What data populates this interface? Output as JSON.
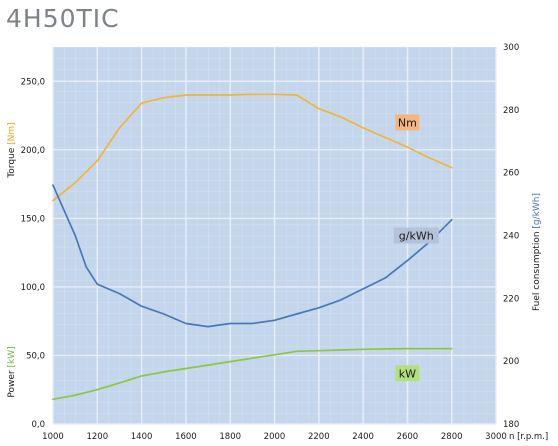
{
  "title": "4H50TIC",
  "chart_data": {
    "type": "line",
    "x_unit": "n [r.p.m.]",
    "xlim": [
      1000,
      3000
    ],
    "x_ticks": [
      1000,
      1200,
      1400,
      1600,
      1800,
      2000,
      2200,
      2400,
      2600,
      2800,
      3000
    ],
    "left_axis": {
      "upper_label": "Torque",
      "upper_unit": "[Nm]",
      "lower_label": "Power",
      "lower_unit": "[kW]",
      "ylim": [
        0,
        275
      ],
      "ticks": [
        "0,0",
        "50,0",
        "100,0",
        "150,0",
        "200,0",
        "250,0"
      ],
      "tick_values": [
        0,
        50,
        100,
        150,
        200,
        250
      ]
    },
    "right_axis": {
      "label": "Fuel consumption",
      "unit": "[g/kWh]",
      "ylim": [
        180,
        300
      ],
      "ticks": [
        "180",
        "200",
        "220",
        "240",
        "260",
        "280",
        "300"
      ],
      "tick_values": [
        180,
        200,
        220,
        240,
        260,
        280,
        300
      ]
    },
    "grid": true,
    "series": [
      {
        "name": "Nm",
        "axis": "left",
        "color": "#f5b431",
        "label_bg": "#f6b57f",
        "label_at": [
          2600,
          220
        ],
        "points": [
          [
            1000,
            163
          ],
          [
            1100,
            176
          ],
          [
            1200,
            192
          ],
          [
            1300,
            216
          ],
          [
            1400,
            234
          ],
          [
            1500,
            238
          ],
          [
            1600,
            240
          ],
          [
            1700,
            240
          ],
          [
            1800,
            240
          ],
          [
            1900,
            240.5
          ],
          [
            2000,
            240.5
          ],
          [
            2100,
            240
          ],
          [
            2200,
            230
          ],
          [
            2300,
            224
          ],
          [
            2400,
            216
          ],
          [
            2500,
            209
          ],
          [
            2600,
            202
          ],
          [
            2700,
            194
          ],
          [
            2800,
            187
          ]
        ]
      },
      {
        "name": "g/kWh",
        "axis": "right",
        "color": "#4a78b5",
        "label_bg": "#b4c3da",
        "label_at": [
          2640,
          240
        ],
        "points": [
          [
            1000,
            256
          ],
          [
            1100,
            240
          ],
          [
            1150,
            230
          ],
          [
            1200,
            224.5
          ],
          [
            1300,
            221.5
          ],
          [
            1400,
            217.5
          ],
          [
            1500,
            215
          ],
          [
            1600,
            212
          ],
          [
            1700,
            211
          ],
          [
            1800,
            212
          ],
          [
            1900,
            212
          ],
          [
            2000,
            213
          ],
          [
            2100,
            215
          ],
          [
            2200,
            217
          ],
          [
            2300,
            219.5
          ],
          [
            2400,
            223
          ],
          [
            2500,
            226.5
          ],
          [
            2600,
            232
          ],
          [
            2700,
            238
          ],
          [
            2800,
            245
          ]
        ]
      },
      {
        "name": "kW",
        "axis": "left",
        "color": "#8dc63f",
        "label_bg": "#b3e07c",
        "label_at": [
          2600,
          37
        ],
        "points": [
          [
            1000,
            18
          ],
          [
            1100,
            21
          ],
          [
            1200,
            25
          ],
          [
            1300,
            30
          ],
          [
            1400,
            35
          ],
          [
            1500,
            38
          ],
          [
            1600,
            40.5
          ],
          [
            1700,
            43
          ],
          [
            1800,
            45.5
          ],
          [
            1900,
            48
          ],
          [
            2000,
            50.5
          ],
          [
            2100,
            53
          ],
          [
            2200,
            53.5
          ],
          [
            2300,
            54
          ],
          [
            2400,
            54.5
          ],
          [
            2500,
            54.8
          ],
          [
            2600,
            55
          ],
          [
            2700,
            55
          ],
          [
            2800,
            55
          ]
        ]
      }
    ]
  }
}
